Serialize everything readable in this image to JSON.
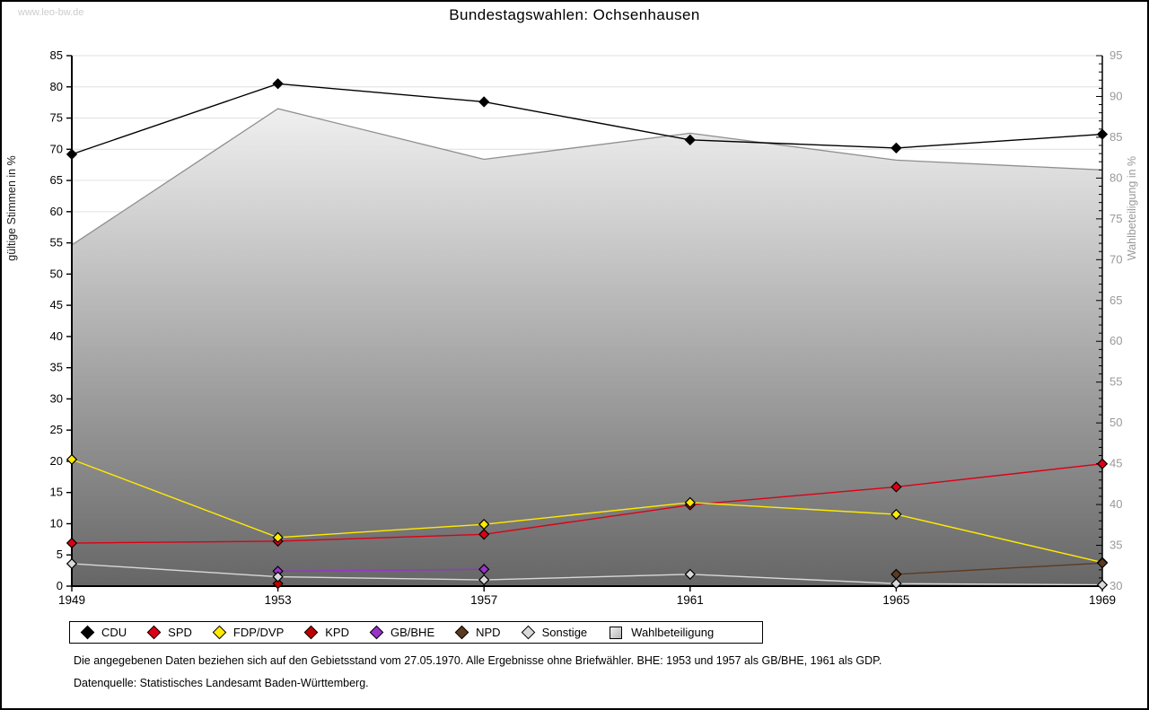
{
  "page": {
    "watermark": "www.leo-bw.de",
    "title": "Bundestagswahlen: Ochsenhausen"
  },
  "chart_data": {
    "type": "line",
    "x": [
      1949,
      1953,
      1957,
      1961,
      1965,
      1969
    ],
    "left_axis": {
      "label": "gültige Stimmen in %",
      "min": 0,
      "max": 85,
      "tick_step": 5
    },
    "right_axis": {
      "label": "Wahlbeteiligung in %",
      "min": 30,
      "max": 95,
      "tick_step": 5,
      "minor_step": 1
    },
    "grid": "horizontal",
    "legend_position": "bottom",
    "series": [
      {
        "name": "CDU",
        "axis": "left",
        "type": "line",
        "color": "#000000",
        "values": [
          69.2,
          80.5,
          77.6,
          71.5,
          70.2,
          72.4
        ]
      },
      {
        "name": "SPD",
        "axis": "left",
        "type": "line",
        "color": "#dd0016",
        "values": [
          6.9,
          7.2,
          8.3,
          13.0,
          15.9,
          19.6
        ]
      },
      {
        "name": "FDP/DVP",
        "axis": "left",
        "type": "line",
        "color": "#ffeb00",
        "values": [
          20.3,
          7.8,
          9.9,
          13.4,
          11.5,
          3.8
        ]
      },
      {
        "name": "KPD",
        "axis": "left",
        "type": "line",
        "color": "#c00000",
        "values": [
          null,
          0.4,
          null,
          null,
          null,
          null
        ]
      },
      {
        "name": "GB/BHE",
        "axis": "left",
        "type": "line",
        "color": "#9933cc",
        "values": [
          null,
          2.4,
          2.7,
          null,
          null,
          null
        ]
      },
      {
        "name": "NPD",
        "axis": "left",
        "type": "line",
        "color": "#5c3a21",
        "values": [
          null,
          null,
          null,
          null,
          1.9,
          3.7
        ]
      },
      {
        "name": "Sonstige",
        "axis": "left",
        "type": "line",
        "color": "#d9d9d9",
        "values": [
          3.6,
          1.5,
          1.0,
          1.9,
          0.4,
          0.2
        ]
      },
      {
        "name": "Wahlbeteiligung",
        "axis": "right",
        "type": "area",
        "color": "#8f8f8f",
        "values": [
          71.8,
          88.5,
          82.3,
          85.5,
          82.2,
          81.0
        ]
      }
    ],
    "area_gradient": {
      "top": "#ffffff",
      "bottom": "#666666"
    },
    "grid_color": "#e0e0e0",
    "right_label_color": "#999999"
  },
  "footnotes": {
    "line1": "Die angegebenen Daten beziehen sich auf den Gebietsstand vom 27.05.1970. Alle Ergebnisse ohne Briefwähler. BHE: 1953 und 1957 als GB/BHE, 1961 als GDP.",
    "line2": "Datenquelle: Statistisches Landesamt Baden-Württemberg."
  }
}
